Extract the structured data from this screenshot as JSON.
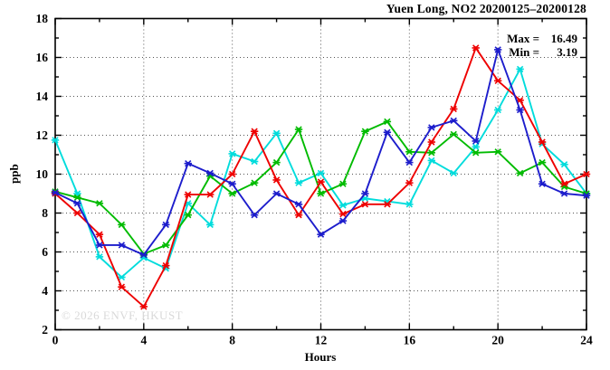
{
  "chart_data": {
    "type": "line",
    "title": "Yuen Long, NO2 20200125–20200128",
    "xlabel": "Hours",
    "ylabel": "ppb",
    "xlim": [
      0,
      24
    ],
    "ylim": [
      2,
      18
    ],
    "xticks": [
      0,
      4,
      8,
      12,
      16,
      20,
      24
    ],
    "xtick_minor_step": 2,
    "yticks": [
      2,
      4,
      6,
      8,
      10,
      12,
      14,
      16,
      18
    ],
    "ytick_minor_step": 1,
    "grid": {
      "style": "dotted",
      "x_at": [
        4,
        8,
        12,
        16,
        20
      ],
      "y_at": [
        4,
        6,
        8,
        10,
        12,
        14,
        16
      ]
    },
    "legend": "none",
    "annotations": {
      "max_label": "Max =",
      "max_value": "16.49",
      "min_label": "Min =",
      "min_value": "3.19"
    },
    "watermark": "© 2026 ENVF, HKUST",
    "x": [
      0,
      1,
      2,
      3,
      4,
      5,
      6,
      7,
      8,
      9,
      10,
      11,
      12,
      13,
      14,
      15,
      16,
      17,
      18,
      19,
      20,
      21,
      22,
      23,
      24
    ],
    "series": [
      {
        "name": "cyan",
        "color": "#00dcdc",
        "values": [
          11.75,
          9.0,
          5.75,
          4.7,
          5.7,
          5.15,
          8.5,
          7.4,
          11.05,
          10.65,
          12.1,
          9.55,
          10.05,
          8.4,
          8.75,
          8.6,
          8.45,
          10.7,
          10.05,
          11.4,
          13.3,
          15.4,
          11.55,
          10.5,
          9.0
        ]
      },
      {
        "name": "green",
        "color": "#00bb00",
        "values": [
          9.1,
          8.8,
          8.5,
          7.4,
          5.9,
          6.35,
          7.9,
          9.9,
          9.0,
          9.55,
          10.6,
          12.3,
          9.0,
          9.5,
          12.2,
          12.7,
          11.15,
          11.1,
          12.05,
          11.1,
          11.15,
          10.05,
          10.6,
          9.35,
          9.0
        ]
      },
      {
        "name": "red",
        "color": "#ee0000",
        "values": [
          9.0,
          8.0,
          6.9,
          4.2,
          3.19,
          5.3,
          8.95,
          8.95,
          10.0,
          12.2,
          9.7,
          7.9,
          9.6,
          7.95,
          8.45,
          8.45,
          9.55,
          11.65,
          13.35,
          16.49,
          14.8,
          13.8,
          11.65,
          9.5,
          10.0
        ]
      },
      {
        "name": "blue",
        "color": "#1d1dcc",
        "values": [
          9.05,
          8.5,
          6.35,
          6.35,
          5.85,
          7.4,
          10.55,
          10.05,
          9.5,
          7.9,
          9.0,
          8.45,
          6.9,
          7.6,
          9.0,
          12.15,
          10.6,
          12.4,
          12.75,
          11.7,
          16.4,
          13.3,
          9.5,
          9.0,
          8.9
        ]
      }
    ]
  }
}
